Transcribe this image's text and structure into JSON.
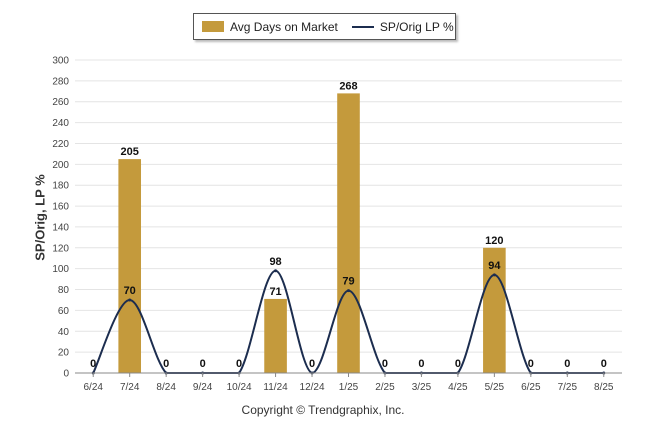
{
  "legend": {
    "bar_label": "Avg Days on Market",
    "line_label": "SP/Orig LP %"
  },
  "copyright": "Copyright © Trendgraphix, Inc.",
  "colors": {
    "bar": "#c49a3c",
    "line": "#1c2d4f",
    "grid": "#e4e4e4",
    "axis": "#888888"
  },
  "chart_data": {
    "type": "bar",
    "title": "",
    "xlabel": "",
    "ylabel": "SP/Orig, LP %",
    "ylim": [
      0,
      300
    ],
    "yticks": [
      0,
      20,
      40,
      60,
      80,
      100,
      120,
      140,
      160,
      180,
      200,
      220,
      240,
      260,
      280,
      300
    ],
    "grid": true,
    "legend_position": "top-center",
    "categories": [
      "6/24",
      "7/24",
      "8/24",
      "9/24",
      "10/24",
      "11/24",
      "12/24",
      "1/25",
      "2/25",
      "3/25",
      "4/25",
      "5/25",
      "6/25",
      "7/25",
      "8/25"
    ],
    "series": [
      {
        "name": "Avg Days on Market",
        "type": "bar",
        "values": [
          0,
          205,
          0,
          0,
          0,
          71,
          0,
          268,
          0,
          0,
          0,
          120,
          0,
          0,
          0
        ]
      },
      {
        "name": "SP/Orig LP %",
        "type": "line",
        "values": [
          0,
          70,
          0,
          0,
          0,
          98,
          0,
          79,
          0,
          0,
          0,
          94,
          0,
          0,
          0
        ]
      }
    ]
  }
}
